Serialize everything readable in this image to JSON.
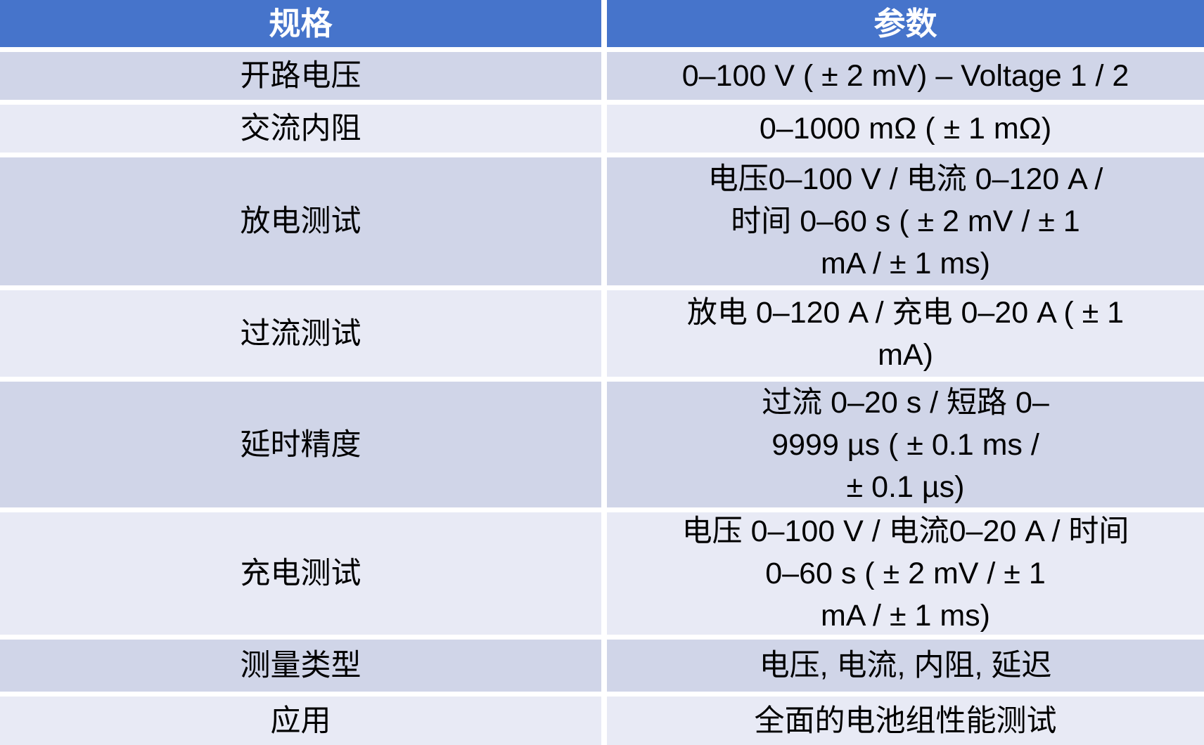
{
  "colors": {
    "header_blue": "#4674CB",
    "row_dark": "#D0D5E8",
    "row_light": "#E8EAF5",
    "divider_white": "#FFFFFF",
    "header_text": "#FFFFFF",
    "body_text": "#000000"
  },
  "table": {
    "header": {
      "spec": "规格",
      "param": "参数"
    },
    "rows": [
      {
        "spec": "开路电压",
        "param": "0–100 V ( ± 2 mV) – Voltage 1 / 2"
      },
      {
        "spec": "交流内阻",
        "param": "0–1000 mΩ ( ± 1 mΩ)"
      },
      {
        "spec": "放电测试",
        "param": "电压0–100 V / 电流 0–120 A /\n时间 0–60 s ( ± 2 mV / ± 1\nmA / ± 1 ms)"
      },
      {
        "spec": "过流测试",
        "param": "放电 0–120 A / 充电 0–20 A ( ± 1\nmA)"
      },
      {
        "spec": "延时精度",
        "param": "过流 0–20 s / 短路 0–\n9999 µs ( ± 0.1 ms /\n± 0.1 µs)"
      },
      {
        "spec": "充电测试",
        "param": "电压 0–100 V / 电流0–20 A / 时间\n0–60 s ( ± 2 mV / ± 1\nmA / ± 1 ms)"
      },
      {
        "spec": "测量类型",
        "param": "电压, 电流, 内阻, 延迟"
      },
      {
        "spec": "应用",
        "param": "全面的电池组性能测试"
      }
    ]
  },
  "chart_data": {
    "type": "table",
    "title": "",
    "columns": [
      "规格",
      "参数"
    ],
    "rows": [
      [
        "开路电压",
        "0–100 V ( ± 2 mV) – Voltage 1 / 2"
      ],
      [
        "交流内阻",
        "0–1000 mΩ ( ± 1 mΩ)"
      ],
      [
        "放电测试",
        "电压0–100 V / 电流 0–120 A / 时间 0–60 s ( ± 2 mV / ± 1 mA / ± 1 ms)"
      ],
      [
        "过流测试",
        "放电 0–120 A / 充电 0–20 A ( ± 1 mA)"
      ],
      [
        "延时精度",
        "过流 0–20 s / 短路 0–9999 µs ( ± 0.1 ms / ± 0.1 µs)"
      ],
      [
        "充电测试",
        "电压 0–100 V / 电流0–20 A / 时间 0–60 s ( ± 2 mV / ± 1 mA / ± 1 ms)"
      ],
      [
        "测量类型",
        "电压, 电流, 内阻, 延迟"
      ],
      [
        "应用",
        "全面的电池组性能测试"
      ]
    ],
    "layout": {
      "header_fill": "#4674CB",
      "odd_row_fill": "#D0D5E8",
      "even_row_fill": "#E8EAF5",
      "text_align": "center"
    }
  }
}
